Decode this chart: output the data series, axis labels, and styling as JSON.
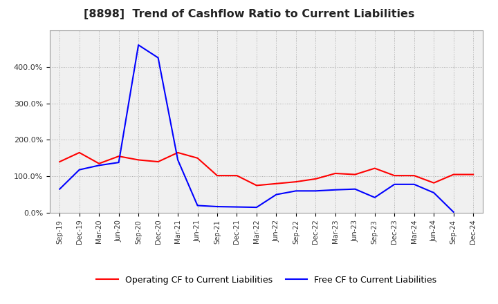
{
  "title": "[8898]  Trend of Cashflow Ratio to Current Liabilities",
  "x_labels": [
    "Sep-19",
    "Dec-19",
    "Mar-20",
    "Jun-20",
    "Sep-20",
    "Dec-20",
    "Mar-21",
    "Jun-21",
    "Sep-21",
    "Dec-21",
    "Mar-22",
    "Jun-22",
    "Sep-22",
    "Dec-22",
    "Mar-23",
    "Jun-23",
    "Sep-23",
    "Dec-23",
    "Mar-24",
    "Jun-24",
    "Sep-24",
    "Dec-24"
  ],
  "operating_cf": [
    1.4,
    1.65,
    1.35,
    1.55,
    1.45,
    1.4,
    1.65,
    1.5,
    1.02,
    1.02,
    0.75,
    0.8,
    0.85,
    0.93,
    1.08,
    1.05,
    1.22,
    1.02,
    1.02,
    0.82,
    1.05,
    1.05
  ],
  "free_cf": [
    0.65,
    1.18,
    1.3,
    1.38,
    4.6,
    4.25,
    1.45,
    0.2,
    0.17,
    0.16,
    0.15,
    0.5,
    0.6,
    0.6,
    0.63,
    0.65,
    0.42,
    0.78,
    0.78,
    0.55,
    0.02,
    null
  ],
  "operating_color": "#ff0000",
  "free_color": "#0000ff",
  "background_color": "#ffffff",
  "plot_bg_color": "#f0f0f0",
  "grid_color": "#aaaaaa",
  "ylim": [
    0.0,
    5.0
  ],
  "yticks": [
    0.0,
    1.0,
    2.0,
    3.0,
    4.0
  ],
  "ytick_labels": [
    "0.0%",
    "100.0%",
    "200.0%",
    "300.0%",
    "400.0%"
  ],
  "legend_op": "Operating CF to Current Liabilities",
  "legend_free": "Free CF to Current Liabilities"
}
